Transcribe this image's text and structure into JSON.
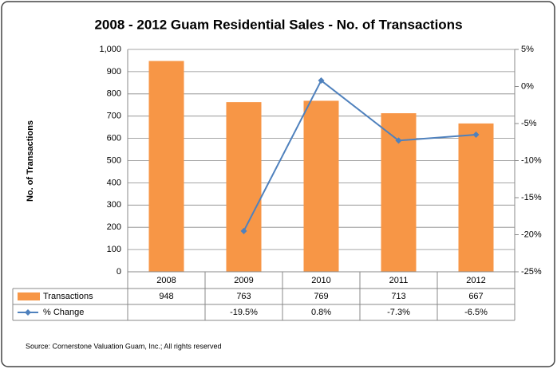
{
  "chart_data": {
    "type": "bar-line",
    "title": "2008 - 2012 Guam Residential Sales - No. of Transactions",
    "y_label": "No. of Transactions",
    "source": "Source: Cornerstone Valuation Guam, Inc.; All rights reserved",
    "categories": [
      "2008",
      "2009",
      "2010",
      "2011",
      "2012"
    ],
    "series": [
      {
        "name": "Transactions",
        "type": "bar",
        "color": "#f79646",
        "values": [
          948,
          763,
          769,
          713,
          667
        ]
      },
      {
        "name": "% Change",
        "type": "line",
        "axis": "y2",
        "color": "#4f81bd",
        "values": [
          null,
          -19.5,
          0.8,
          -7.3,
          -6.5
        ],
        "value_labels": [
          null,
          "-19.5%",
          "0.8%",
          "-7.3%",
          "-6.5%"
        ]
      }
    ],
    "ylim": [
      0,
      1000
    ],
    "yticks": [
      0,
      100,
      200,
      300,
      400,
      500,
      600,
      700,
      800,
      900,
      {
        "value": 1000,
        "label": "1,000"
      }
    ],
    "y2lim": [
      -25,
      5
    ],
    "y2ticks": [
      {
        "value": -25,
        "label": "-25%"
      },
      {
        "value": -20,
        "label": "-20%"
      },
      {
        "value": -15,
        "label": "-15%"
      },
      {
        "value": -10,
        "label": "-10%"
      },
      {
        "value": -5,
        "label": "-5%"
      },
      {
        "value": 0,
        "label": "0%"
      },
      {
        "value": 5,
        "label": "5%"
      }
    ],
    "grid": true
  }
}
